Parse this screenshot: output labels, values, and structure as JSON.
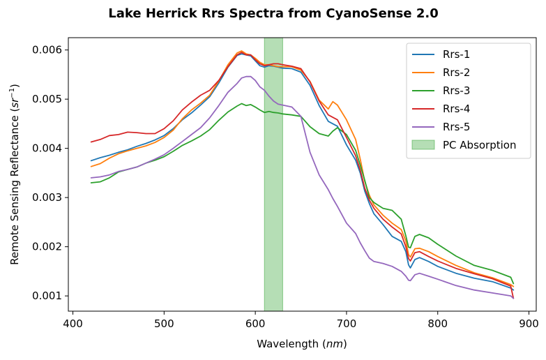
{
  "chart_data": {
    "type": "line",
    "title": "Lake Herrick Rrs Spectra from CyanoSense 2.0",
    "xlabel_prefix": "Wavelength (",
    "xlabel_unit": "nm",
    "xlabel_suffix": ")",
    "ylabel_prefix": "Remote Sensing Reflectance (",
    "ylabel_unit": "sr",
    "ylabel_exp": "−1",
    "ylabel_suffix": ")",
    "xlim": [
      395,
      908
    ],
    "ylim": [
      0.00069,
      0.00625
    ],
    "x_ticks": [
      400,
      500,
      600,
      700,
      800,
      900
    ],
    "y_ticks": [
      0.001,
      0.002,
      0.003,
      0.004,
      0.005,
      0.006
    ],
    "y_tick_labels": [
      "0.001",
      "0.002",
      "0.003",
      "0.004",
      "0.005",
      "0.006"
    ],
    "grid": false,
    "legend_position": "top-right",
    "band": {
      "name": "PC Absorption",
      "x_start": 610,
      "x_end": 630,
      "color": "#2ca02c",
      "alpha": 0.35
    },
    "x": [
      420,
      430,
      440,
      450,
      460,
      470,
      480,
      490,
      500,
      510,
      520,
      530,
      540,
      550,
      560,
      570,
      580,
      585,
      590,
      595,
      600,
      605,
      610,
      615,
      620,
      625,
      630,
      640,
      650,
      660,
      670,
      680,
      685,
      690,
      700,
      710,
      715,
      720,
      725,
      730,
      740,
      750,
      760,
      765,
      768,
      770,
      775,
      780,
      790,
      800,
      820,
      840,
      860,
      880,
      883
    ],
    "series": [
      {
        "name": "Rrs-1",
        "color": "#1f77b4",
        "values": [
          0.00375,
          0.00381,
          0.00386,
          0.00392,
          0.00397,
          0.00404,
          0.0041,
          0.00417,
          0.00426,
          0.0044,
          0.00458,
          0.00472,
          0.00488,
          0.00505,
          0.00533,
          0.00565,
          0.00589,
          0.00592,
          0.0059,
          0.00588,
          0.00578,
          0.00568,
          0.00565,
          0.00568,
          0.00567,
          0.00565,
          0.00563,
          0.00562,
          0.00555,
          0.00528,
          0.00487,
          0.00455,
          0.0045,
          0.00445,
          0.00407,
          0.00376,
          0.0035,
          0.00313,
          0.00288,
          0.00267,
          0.00245,
          0.00221,
          0.00211,
          0.0019,
          0.00163,
          0.00157,
          0.00174,
          0.00178,
          0.0017,
          0.0016,
          0.00146,
          0.00136,
          0.00129,
          0.00116,
          0.00112
        ]
      },
      {
        "name": "Rrs-2",
        "color": "#ff7f0e",
        "values": [
          0.00363,
          0.00369,
          0.0038,
          0.00389,
          0.00395,
          0.004,
          0.00405,
          0.00412,
          0.00422,
          0.00437,
          0.0046,
          0.00478,
          0.00492,
          0.00508,
          0.00537,
          0.0057,
          0.00594,
          0.00598,
          0.00592,
          0.0059,
          0.00583,
          0.00575,
          0.0057,
          0.0057,
          0.00568,
          0.00566,
          0.00566,
          0.00566,
          0.00559,
          0.00536,
          0.00498,
          0.0048,
          0.00495,
          0.00488,
          0.00458,
          0.00418,
          0.00378,
          0.00333,
          0.00305,
          0.00285,
          0.00264,
          0.00248,
          0.00235,
          0.00212,
          0.00184,
          0.00179,
          0.00196,
          0.00197,
          0.0019,
          0.0018,
          0.00162,
          0.00147,
          0.00137,
          0.00123,
          0.00119
        ]
      },
      {
        "name": "Rrs-3",
        "color": "#2ca02c",
        "values": [
          0.0033,
          0.00332,
          0.0034,
          0.00352,
          0.00357,
          0.00362,
          0.0037,
          0.00376,
          0.00383,
          0.00394,
          0.00406,
          0.00415,
          0.00425,
          0.00438,
          0.00457,
          0.00474,
          0.00486,
          0.00491,
          0.00487,
          0.00489,
          0.00484,
          0.00478,
          0.00473,
          0.00475,
          0.00473,
          0.00472,
          0.0047,
          0.00468,
          0.00465,
          0.00444,
          0.0043,
          0.00425,
          0.00435,
          0.00442,
          0.00428,
          0.00396,
          0.00366,
          0.00335,
          0.003,
          0.0029,
          0.00278,
          0.00274,
          0.00256,
          0.00222,
          0.00199,
          0.00198,
          0.00221,
          0.00225,
          0.00218,
          0.00205,
          0.00181,
          0.00162,
          0.00152,
          0.00138,
          0.00125
        ]
      },
      {
        "name": "Rrs-4",
        "color": "#d62728",
        "values": [
          0.00413,
          0.00418,
          0.00426,
          0.00428,
          0.00433,
          0.00432,
          0.0043,
          0.0043,
          0.0044,
          0.00456,
          0.00478,
          0.00494,
          0.00508,
          0.00518,
          0.00538,
          0.00566,
          0.0059,
          0.00595,
          0.0059,
          0.0059,
          0.0058,
          0.00572,
          0.00568,
          0.0057,
          0.00572,
          0.00572,
          0.0057,
          0.00567,
          0.00562,
          0.00535,
          0.00496,
          0.00468,
          0.00463,
          0.00458,
          0.00422,
          0.00385,
          0.00356,
          0.00319,
          0.00295,
          0.00278,
          0.00256,
          0.0024,
          0.00226,
          0.002,
          0.00176,
          0.00171,
          0.00188,
          0.0019,
          0.0018,
          0.00171,
          0.00156,
          0.00145,
          0.00135,
          0.0012,
          0.00095
        ]
      },
      {
        "name": "Rrs-5",
        "color": "#9467bd",
        "values": [
          0.0034,
          0.00342,
          0.00346,
          0.00353,
          0.00357,
          0.00362,
          0.0037,
          0.00378,
          0.00387,
          0.004,
          0.00414,
          0.00428,
          0.00442,
          0.00462,
          0.00487,
          0.00514,
          0.00532,
          0.00543,
          0.00546,
          0.00546,
          0.00538,
          0.00525,
          0.00518,
          0.00506,
          0.00496,
          0.0049,
          0.00488,
          0.00484,
          0.00465,
          0.00392,
          0.00346,
          0.00316,
          0.00298,
          0.00282,
          0.00248,
          0.00227,
          0.00208,
          0.00192,
          0.00177,
          0.0017,
          0.00166,
          0.0016,
          0.0015,
          0.0014,
          0.00132,
          0.00131,
          0.00143,
          0.00146,
          0.0014,
          0.00134,
          0.00121,
          0.00112,
          0.00106,
          0.001,
          0.00095
        ]
      }
    ]
  }
}
